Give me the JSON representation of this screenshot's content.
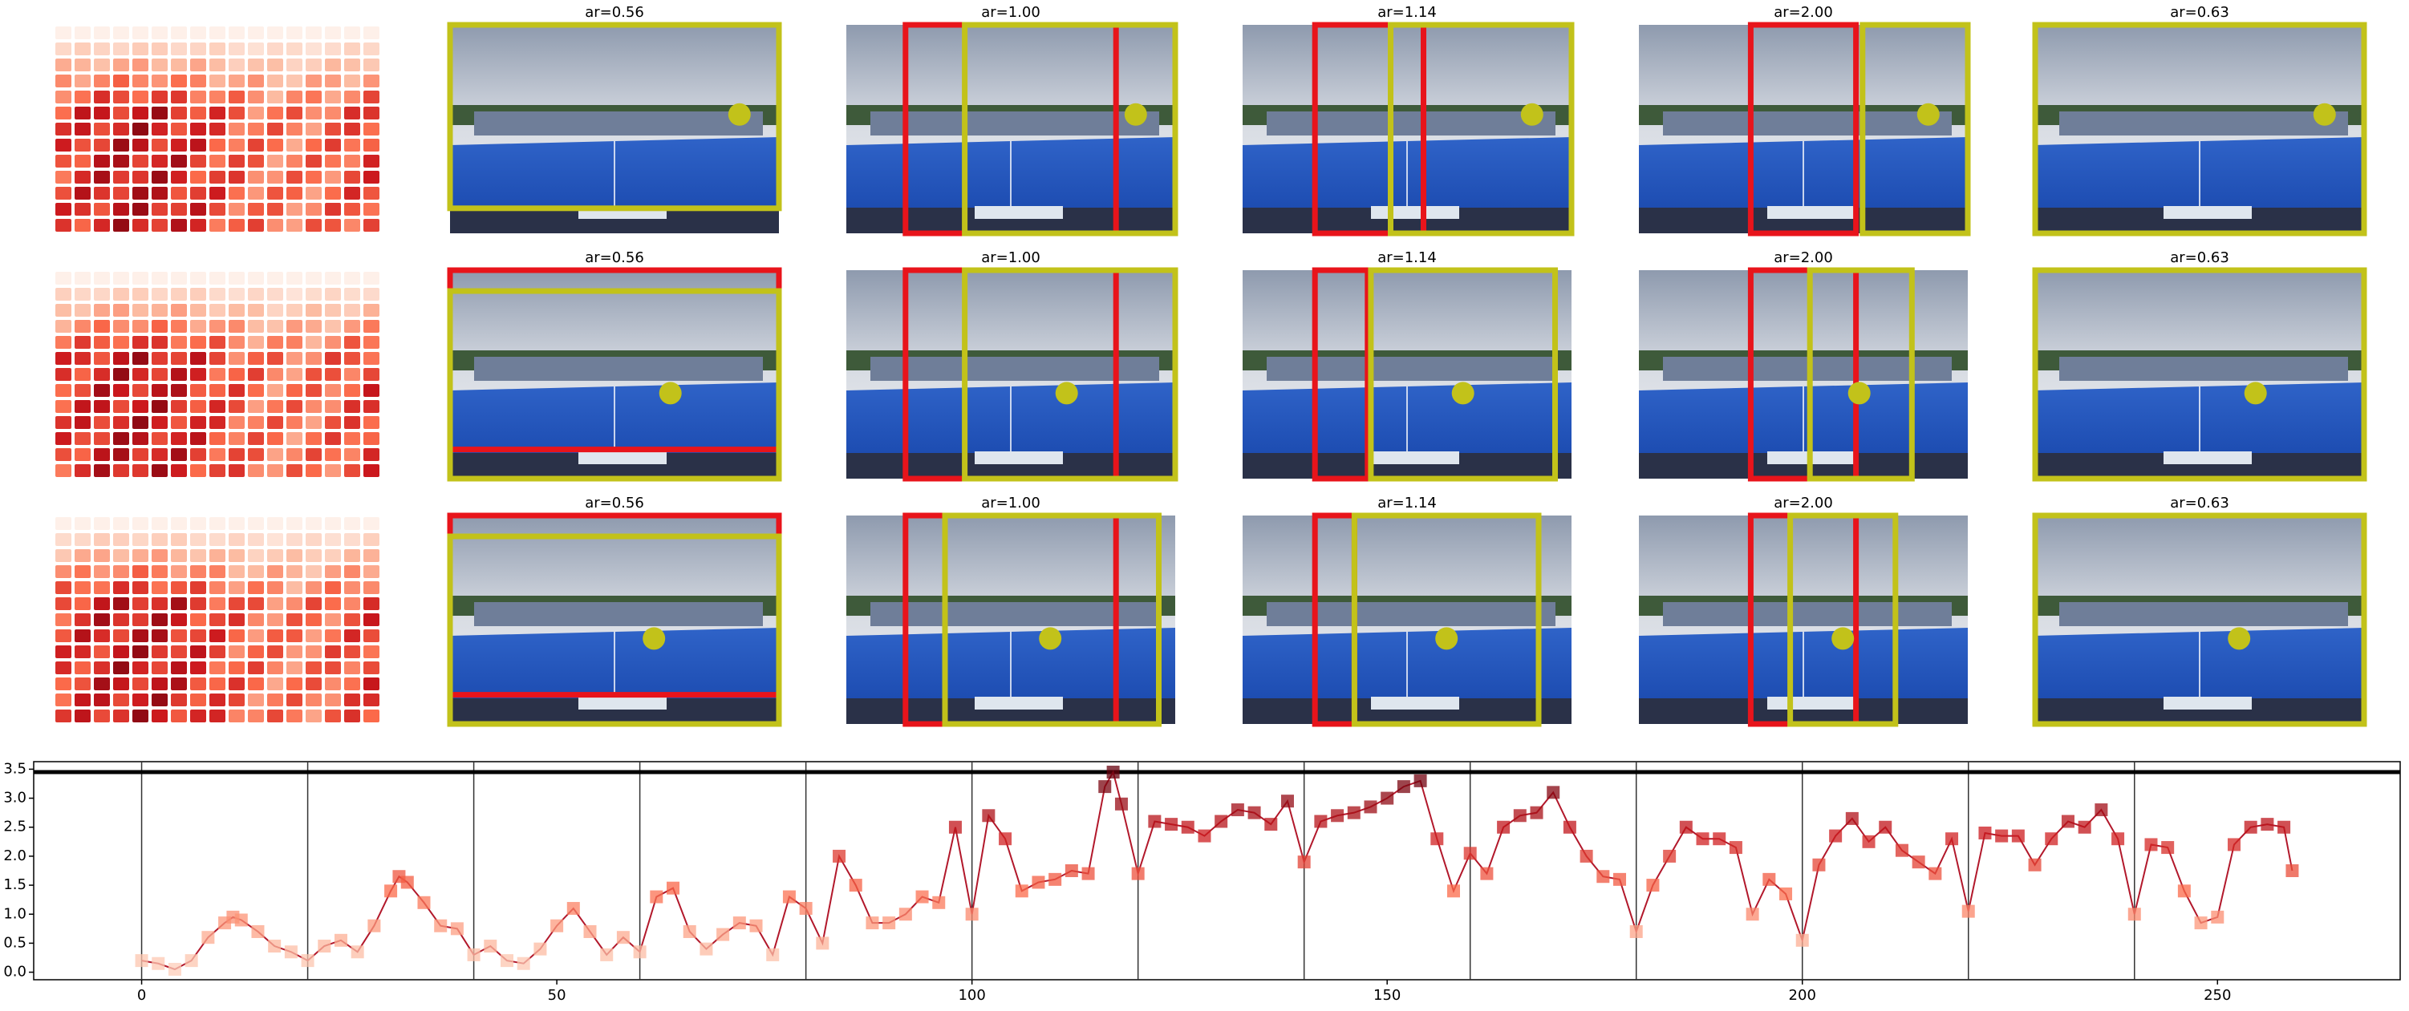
{
  "panel_titles": [
    [
      "ar=0.56",
      "ar=1.00",
      "ar=1.14",
      "ar=2.00",
      "ar=0.63"
    ],
    [
      "ar=0.56",
      "ar=1.00",
      "ar=1.14",
      "ar=2.00",
      "ar=0.63"
    ],
    [
      "ar=0.56",
      "ar=1.00",
      "ar=1.14",
      "ar=2.00",
      "ar=0.63"
    ]
  ],
  "chart_data": {
    "type": "line",
    "color": "#b2182b",
    "x": [
      0,
      2,
      4,
      6,
      8,
      10,
      11,
      12,
      14,
      16,
      18,
      20,
      22,
      24,
      26,
      28,
      30,
      31,
      32,
      34,
      36,
      38,
      40,
      42,
      44,
      46,
      48,
      50,
      52,
      54,
      56,
      58,
      60,
      62,
      64,
      66,
      68,
      70,
      72,
      74,
      76,
      78,
      80,
      82,
      84,
      86,
      88,
      90,
      92,
      94,
      96,
      98,
      100,
      102,
      104,
      106,
      108,
      110,
      112,
      114,
      116,
      117,
      118,
      120,
      122,
      124,
      126,
      128,
      130,
      132,
      134,
      136,
      138,
      140,
      142,
      144,
      146,
      148,
      150,
      152,
      154,
      156,
      158,
      160,
      162,
      164,
      166,
      168,
      170,
      172,
      174,
      176,
      178,
      180,
      182,
      184,
      186,
      188,
      190,
      192,
      194,
      196,
      198,
      200,
      202,
      204,
      206,
      208,
      210,
      212,
      214,
      216,
      218,
      220,
      222,
      224,
      226,
      228,
      230,
      232,
      234,
      236,
      238,
      240,
      242,
      244,
      246,
      248,
      250,
      252,
      254,
      256,
      258,
      259
    ],
    "values": [
      0.2,
      0.15,
      0.05,
      0.2,
      0.6,
      0.85,
      0.95,
      0.9,
      0.7,
      0.45,
      0.35,
      0.2,
      0.45,
      0.55,
      0.35,
      0.8,
      1.4,
      1.65,
      1.55,
      1.2,
      0.8,
      0.75,
      0.3,
      0.45,
      0.2,
      0.15,
      0.4,
      0.8,
      1.1,
      0.7,
      0.3,
      0.6,
      0.35,
      1.3,
      1.45,
      0.7,
      0.4,
      0.65,
      0.85,
      0.8,
      0.3,
      1.3,
      1.1,
      0.5,
      2.0,
      1.5,
      0.85,
      0.85,
      1.0,
      1.3,
      1.2,
      2.5,
      1.0,
      2.7,
      2.3,
      1.4,
      1.55,
      1.6,
      1.75,
      1.7,
      3.2,
      3.45,
      2.9,
      1.7,
      2.6,
      2.55,
      2.5,
      2.35,
      2.6,
      2.8,
      2.75,
      2.55,
      2.95,
      1.9,
      2.6,
      2.7,
      2.75,
      2.85,
      3.0,
      3.2,
      3.3,
      2.3,
      1.4,
      2.05,
      1.7,
      2.5,
      2.7,
      2.75,
      3.1,
      2.5,
      2.0,
      1.65,
      1.6,
      0.7,
      1.5,
      2.0,
      2.5,
      2.3,
      2.3,
      2.15,
      1.0,
      1.6,
      1.35,
      0.55,
      1.85,
      2.35,
      2.65,
      2.25,
      2.5,
      2.1,
      1.9,
      1.7,
      2.3,
      1.05,
      2.4,
      2.35,
      2.35,
      1.85,
      2.3,
      2.6,
      2.5,
      2.8,
      2.3,
      1.0,
      2.2,
      2.15,
      1.4,
      0.85,
      0.95,
      2.2,
      2.5,
      2.55,
      2.5,
      1.75
    ],
    "hline": 3.45,
    "vlines": [
      0,
      20,
      40,
      60,
      80,
      100,
      120,
      140,
      160,
      180,
      200,
      220,
      240
    ],
    "xlim": [
      -13,
      272
    ],
    "ylim": [
      -0.13,
      3.63
    ],
    "xticks": [
      0,
      50,
      100,
      150,
      200,
      250
    ],
    "yticks": [
      {
        "value": 0,
        "label": "0.0"
      },
      {
        "value": 0.5,
        "label": "0.5"
      },
      {
        "value": 1,
        "label": "1.0"
      },
      {
        "value": 1.5,
        "label": "1.5"
      },
      {
        "value": 2,
        "label": "2.0"
      },
      {
        "value": 2.5,
        "label": "2.5"
      },
      {
        "value": 3,
        "label": "3.0"
      },
      {
        "value": 3.5,
        "label": "3.5"
      }
    ]
  }
}
